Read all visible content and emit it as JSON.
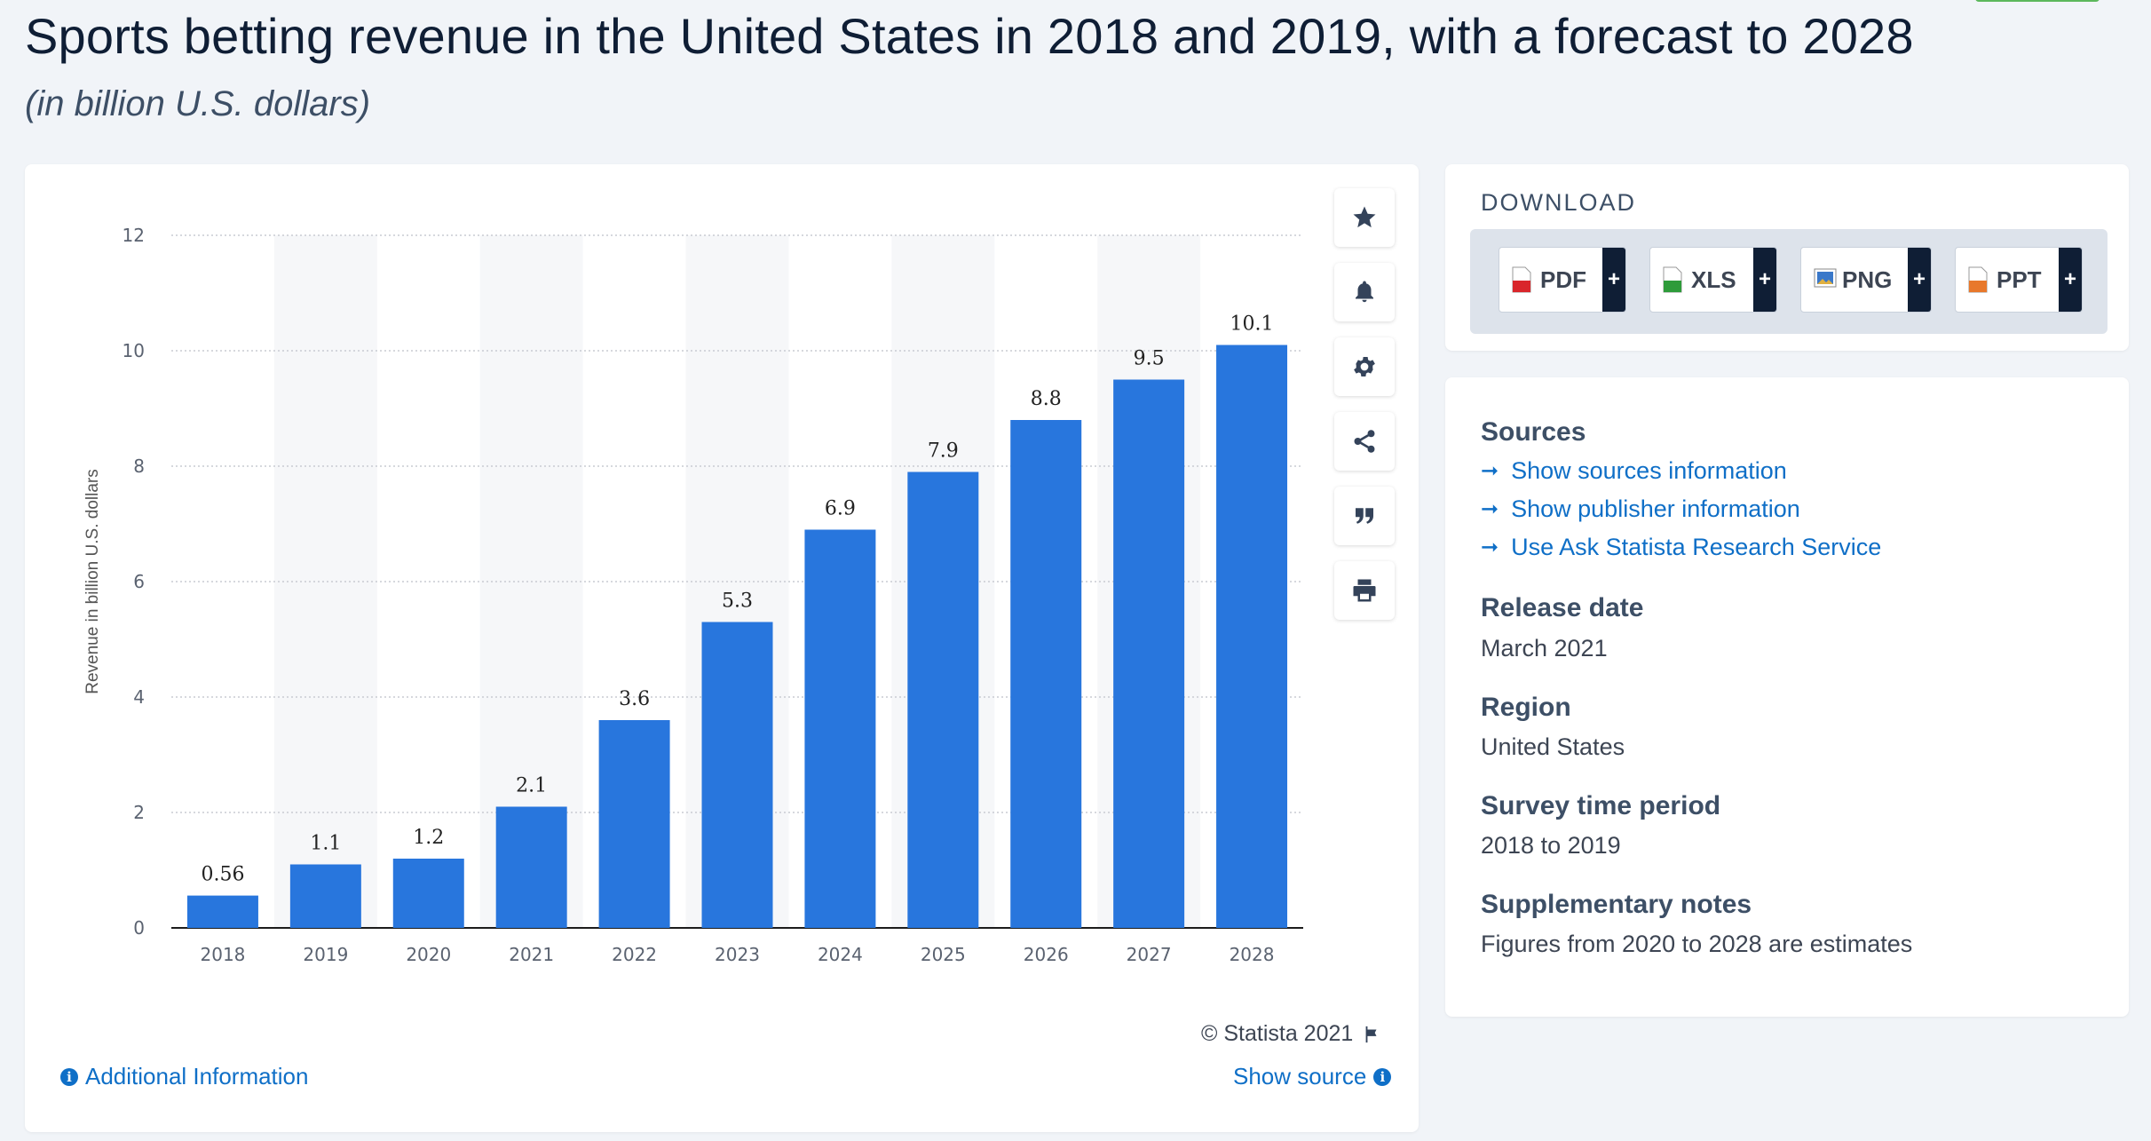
{
  "header": {
    "title": "Sports betting revenue in the United States in 2018 and 2019, with a forecast to 2028",
    "subtitle": "(in billion U.S. dollars)"
  },
  "chart_data": {
    "type": "bar",
    "categories": [
      "2018",
      "2019",
      "2020",
      "2021",
      "2022",
      "2023",
      "2024",
      "2025",
      "2026",
      "2027",
      "2028"
    ],
    "values": [
      0.56,
      1.1,
      1.2,
      2.1,
      3.6,
      5.3,
      6.9,
      7.9,
      8.8,
      9.5,
      10.1
    ],
    "value_labels": [
      "0.56",
      "1.1",
      "1.2",
      "2.1",
      "3.6",
      "5.3",
      "6.9",
      "7.9",
      "8.8",
      "9.5",
      "10.1"
    ],
    "ylabel": "Revenue in billion U.S. dollars",
    "ylim": [
      0,
      12
    ],
    "yticks": [
      "0",
      "2",
      "4",
      "6",
      "8",
      "10",
      "12"
    ],
    "grid": true,
    "bar_color": "#2876dd"
  },
  "toolbar": {
    "items": [
      "star-icon",
      "bell-icon",
      "gear-icon",
      "share-icon",
      "quote-icon",
      "print-icon"
    ]
  },
  "footer": {
    "copyright": "© Statista 2021",
    "additional_info": "Additional Information",
    "show_source": "Show source"
  },
  "download": {
    "heading": "DOWNLOAD",
    "buttons": [
      {
        "label": "PDF",
        "plus": "+",
        "color": "#d9262b"
      },
      {
        "label": "XLS",
        "plus": "+",
        "color": "#2e9b3a"
      },
      {
        "label": "PNG",
        "plus": "+",
        "color": "#3a78c9"
      },
      {
        "label": "PPT",
        "plus": "+",
        "color": "#e8782b"
      }
    ]
  },
  "info": {
    "sources_heading": "Sources",
    "links": [
      "Show sources information",
      "Show publisher information",
      "Use Ask Statista Research Service"
    ],
    "release_heading": "Release date",
    "release_value": "March 2021",
    "region_heading": "Region",
    "region_value": "United States",
    "survey_heading": "Survey time period",
    "survey_value": "2018 to 2019",
    "notes_heading": "Supplementary notes",
    "notes_value": "Figures from 2020 to 2028 are estimates"
  }
}
